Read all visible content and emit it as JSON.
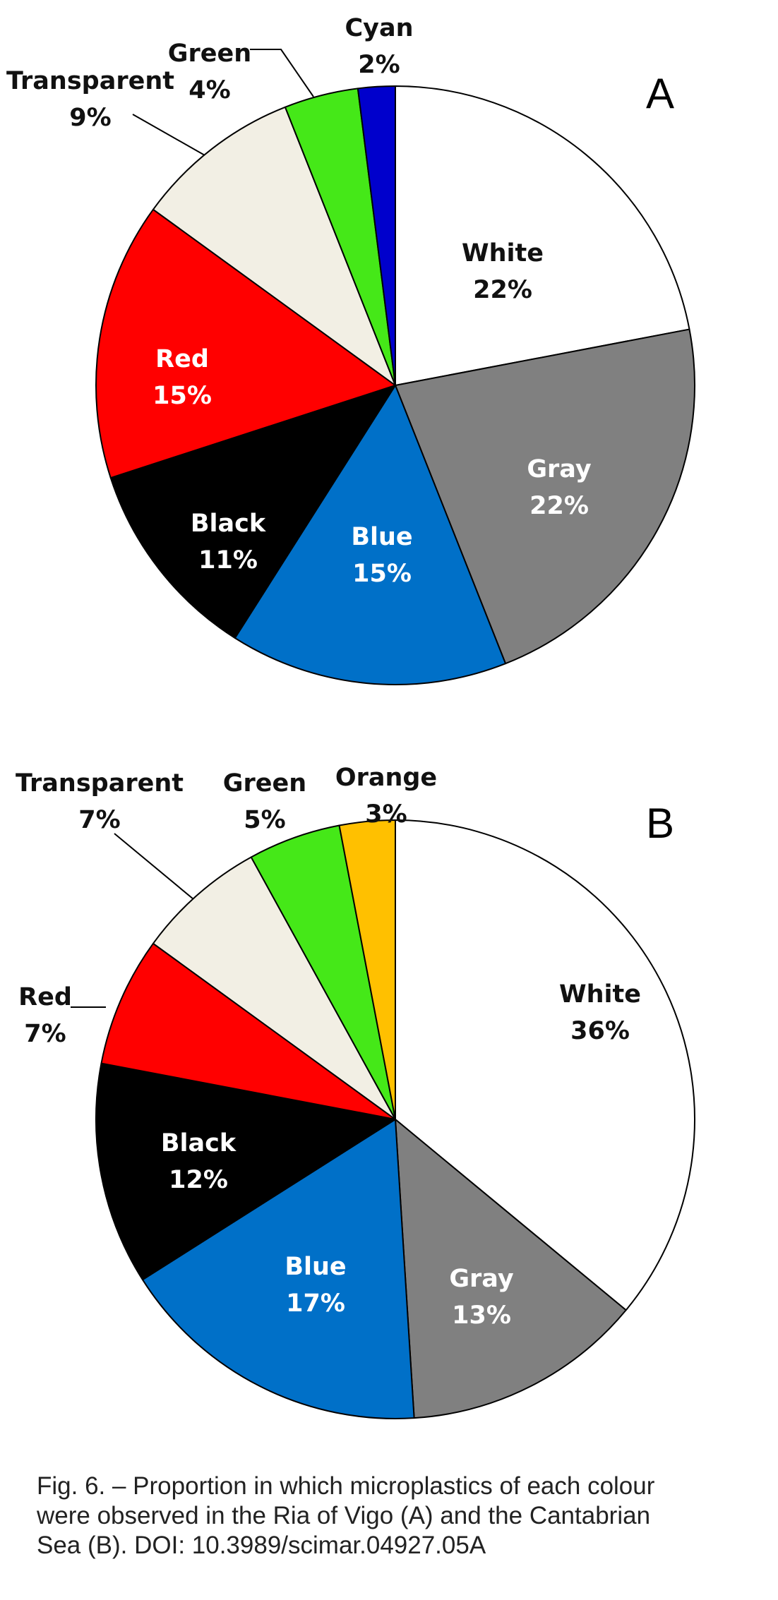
{
  "chart_data": [
    {
      "type": "pie",
      "panel": "A",
      "slices": [
        {
          "label": "White",
          "value": 22,
          "value_label": "22%",
          "color": "#ffffff",
          "label_color": "#111111"
        },
        {
          "label": "Gray",
          "value": 22,
          "value_label": "22%",
          "color": "#808080",
          "label_color": "#ffffff"
        },
        {
          "label": "Blue",
          "value": 15,
          "value_label": "15%",
          "color": "#0070c8",
          "label_color": "#ffffff"
        },
        {
          "label": "Black",
          "value": 11,
          "value_label": "11%",
          "color": "#000000",
          "label_color": "#ffffff"
        },
        {
          "label": "Red",
          "value": 15,
          "value_label": "15%",
          "color": "#ff0000",
          "label_color": "#ffffff"
        },
        {
          "label": "Transparent",
          "value": 9,
          "value_label": "9%",
          "color": "#f2efe4",
          "label_color": "#111111"
        },
        {
          "label": "Green",
          "value": 4,
          "value_label": "4%",
          "color": "#45e818",
          "label_color": "#111111"
        },
        {
          "label": "Cyan",
          "value": 2,
          "value_label": "2%",
          "color": "#0000cc",
          "label_color": "#111111"
        }
      ]
    },
    {
      "type": "pie",
      "panel": "B",
      "slices": [
        {
          "label": "White",
          "value": 36,
          "value_label": "36%",
          "color": "#ffffff",
          "label_color": "#111111"
        },
        {
          "label": "Gray",
          "value": 13,
          "value_label": "13%",
          "color": "#808080",
          "label_color": "#ffffff"
        },
        {
          "label": "Blue",
          "value": 17,
          "value_label": "17%",
          "color": "#0070c8",
          "label_color": "#ffffff"
        },
        {
          "label": "Black",
          "value": 12,
          "value_label": "12%",
          "color": "#000000",
          "label_color": "#ffffff"
        },
        {
          "label": "Red",
          "value": 7,
          "value_label": "7%",
          "color": "#ff0000",
          "label_color": "#111111"
        },
        {
          "label": "Transparent",
          "value": 7,
          "value_label": "7%",
          "color": "#f2efe4",
          "label_color": "#111111"
        },
        {
          "label": "Green",
          "value": 5,
          "value_label": "5%",
          "color": "#45e818",
          "label_color": "#111111"
        },
        {
          "label": "Orange",
          "value": 3,
          "value_label": "3%",
          "color": "#ffc000",
          "label_color": "#111111"
        }
      ]
    }
  ],
  "caption": {
    "line1": "Fig. 6. – Proportion in which microplastics of each colour",
    "line2": "were observed in the Ria of Vigo (A) and the Cantabrian",
    "line3": "Sea (B). DOI: 10.3989/scimar.04927.05A"
  }
}
